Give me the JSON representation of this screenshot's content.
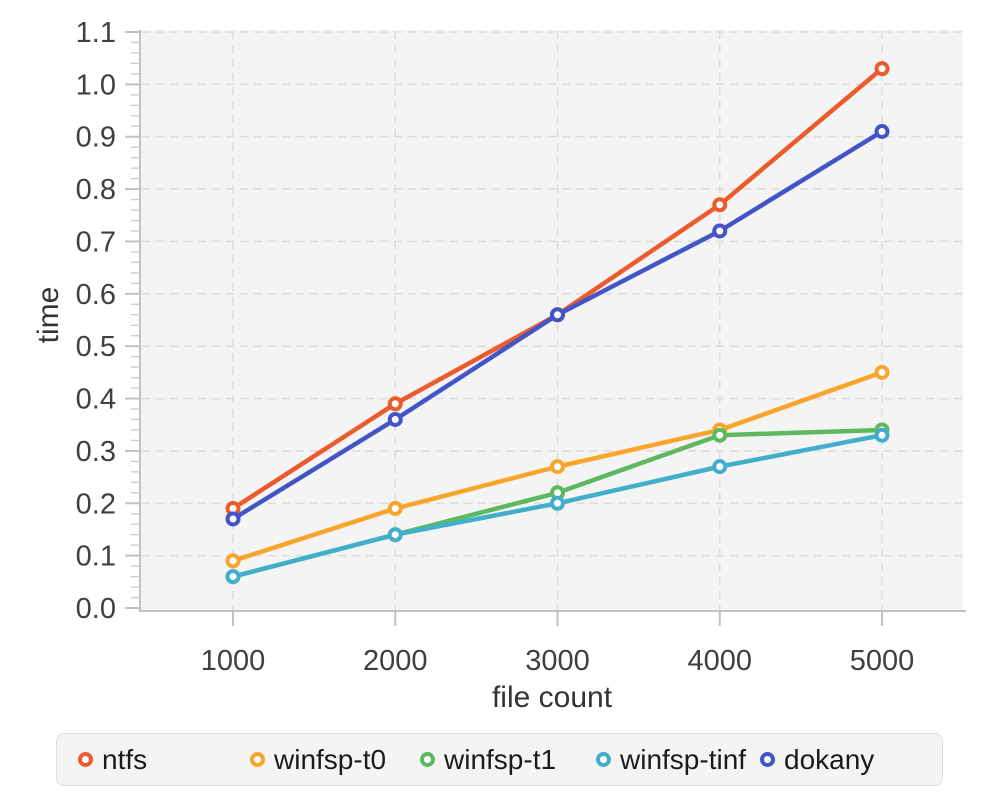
{
  "chart_data": {
    "type": "line",
    "title": "",
    "xlabel": "file count",
    "ylabel": "time",
    "x": [
      1000,
      2000,
      3000,
      4000,
      5000
    ],
    "x_tick_labels": [
      "1000",
      "2000",
      "3000",
      "4000",
      "5000"
    ],
    "series": [
      {
        "name": "ntfs",
        "color": "#ec5b2d",
        "values": [
          0.19,
          0.39,
          0.56,
          0.77,
          1.03
        ]
      },
      {
        "name": "winfsp-t0",
        "color": "#f9a42b",
        "values": [
          0.09,
          0.19,
          0.27,
          0.34,
          0.45
        ]
      },
      {
        "name": "winfsp-t1",
        "color": "#5cb95f",
        "values": [
          0.06,
          0.14,
          0.22,
          0.33,
          0.34
        ]
      },
      {
        "name": "winfsp-tinf",
        "color": "#41afc9",
        "values": [
          0.06,
          0.14,
          0.2,
          0.27,
          0.33
        ]
      },
      {
        "name": "dokany",
        "color": "#4254c6",
        "values": [
          0.17,
          0.36,
          0.56,
          0.72,
          0.91
        ]
      }
    ],
    "ylim": [
      0.0,
      1.1
    ],
    "ytick_step": 0.1,
    "y_minor_divisions": 5,
    "grid": "dashed",
    "legend_position": "bottom",
    "marker_style": "open-circle",
    "colors": {
      "plot_background": "#f4f4f4",
      "grid_line": "#dcdcdc",
      "axis_line": "#c2c2c2",
      "minor_tick": "#cdcdcd",
      "tick_label": "#3f3f3f",
      "axis_title": "#333333",
      "legend_text": "#1b1b1b",
      "marker_fill": "#ffffff"
    }
  }
}
